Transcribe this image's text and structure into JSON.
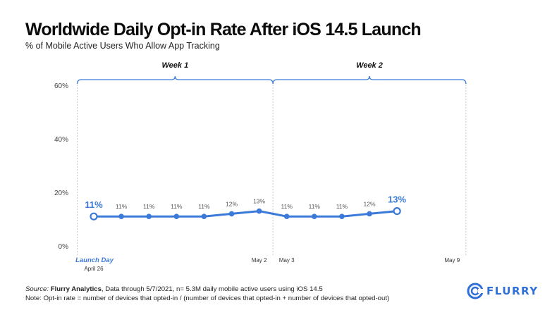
{
  "title": "Worldwide Daily Opt-in Rate After iOS 14.5 Launch",
  "subtitle": "% of Mobile Active Users Who Allow App Tracking",
  "footer": {
    "source_prefix": "Source:",
    "source_name": "Flurry Analytics",
    "source_rest": ", Data through 5/7/2021, n= 5.3M daily mobile active users using iOS 14.5",
    "note": "Note: Opt-in rate = number of devices that opted-in / (number of devices that opted-in + number of devices that opted-out)"
  },
  "logo": {
    "text": "FLURRY",
    "icon": "flurry-logo-icon"
  },
  "colors": {
    "line": "#3b7ad9",
    "bracket": "#3b7ad9",
    "axis_text": "#444444",
    "gridline": "#c8c8c8"
  },
  "chart_data": {
    "type": "line",
    "title": "Worldwide Daily Opt-in Rate After iOS 14.5 Launch",
    "subtitle": "% of Mobile Active Users Who Allow App Tracking",
    "ylim": [
      0,
      60
    ],
    "yticks": [
      "0%",
      "20%",
      "40%",
      "60%"
    ],
    "ytick_values": [
      0,
      20,
      40,
      60
    ],
    "x_range_days": [
      0,
      14
    ],
    "x_labels": [
      {
        "day": 0,
        "text": "Launch Day",
        "style": "highlight"
      },
      {
        "day": 0,
        "text": "April 26",
        "style": "small"
      },
      {
        "day": 6,
        "text": "May 2",
        "style": "small"
      },
      {
        "day": 7,
        "text": "May 3",
        "style": "small"
      },
      {
        "day": 13,
        "text": "May 9",
        "style": "small"
      }
    ],
    "week_brackets": [
      {
        "label": "Week 1",
        "start_day": -0.6,
        "end_day": 6.5
      },
      {
        "label": "Week 2",
        "start_day": 6.5,
        "end_day": 13.5
      }
    ],
    "dashed_verticals_days": [
      -0.6,
      6.5,
      13.5
    ],
    "series": [
      {
        "values": [
          11,
          11,
          11,
          11,
          11,
          12,
          13,
          11,
          11,
          11,
          12,
          13
        ],
        "days": [
          0,
          1,
          2,
          3,
          4,
          5,
          6,
          7,
          8,
          9,
          10,
          11
        ],
        "labels": [
          "11%",
          "11%",
          "11%",
          "11%",
          "11%",
          "12%",
          "13%",
          "11%",
          "11%",
          "11%",
          "12%",
          "13%"
        ],
        "highlighted_indices": [
          0,
          11
        ]
      }
    ],
    "grid": false,
    "legend": "none"
  }
}
